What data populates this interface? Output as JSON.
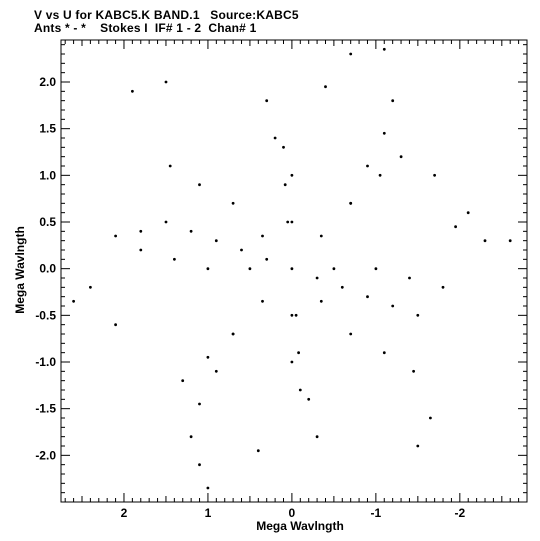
{
  "header": {
    "line1": "V vs U for KABC5.K BAND.1   Source:KABC5",
    "line2": "Ants * - *    Stokes I  IF# 1 - 2  Chan# 1"
  },
  "chart_data": {
    "type": "scatter",
    "title": "V vs U for KABC5.K BAND.1   Source:KABC5",
    "subtitle": "Ants * - *    Stokes I  IF# 1 - 2  Chan# 1",
    "xlabel": "Mega Wavlngth",
    "ylabel": "Mega Wavlngth",
    "xlim": [
      2.75,
      -2.8
    ],
    "ylim": [
      -2.5,
      2.45
    ],
    "x_reversed": true,
    "grid": false,
    "legend": "none",
    "x_ticks": [
      2,
      1,
      0,
      -1,
      -2
    ],
    "x_tick_labels": [
      "2",
      "1",
      "0",
      "-1",
      "-2"
    ],
    "y_ticks": [
      2.0,
      1.5,
      1.0,
      0.5,
      0.0,
      -0.5,
      -1.0,
      -1.5,
      -2.0
    ],
    "y_tick_labels": [
      "2.0",
      "1.5",
      "1.0",
      "0.5",
      "0.0",
      "-0.5",
      "-1.0",
      "-1.5",
      "-2.0"
    ],
    "marker_color": "#000000",
    "series": [
      {
        "points": [
          [
            0.0,
            0.0
          ],
          [
            0.3,
            0.1
          ],
          [
            0.6,
            0.2
          ],
          [
            0.9,
            0.3
          ],
          [
            1.2,
            0.4
          ],
          [
            1.5,
            0.5
          ],
          [
            1.8,
            0.4
          ],
          [
            2.1,
            0.35
          ],
          [
            -0.3,
            -0.1
          ],
          [
            -0.6,
            -0.2
          ],
          [
            -0.9,
            -0.3
          ],
          [
            -1.2,
            -0.4
          ],
          [
            -1.5,
            -0.5
          ],
          [
            -0.35,
            0.35
          ],
          [
            -0.7,
            0.7
          ],
          [
            -1.05,
            1.0
          ],
          [
            -1.3,
            1.2
          ],
          [
            -1.7,
            1.0
          ],
          [
            0.35,
            -0.35
          ],
          [
            0.7,
            -0.7
          ],
          [
            1.0,
            -0.95
          ],
          [
            1.3,
            -1.2
          ],
          [
            0.05,
            0.5
          ],
          [
            0.08,
            0.9
          ],
          [
            0.1,
            1.3
          ],
          [
            -0.05,
            -0.5
          ],
          [
            -0.08,
            -0.9
          ],
          [
            -0.1,
            -1.3
          ],
          [
            0.5,
            0.0
          ],
          [
            0.0,
            0.5
          ],
          [
            -0.5,
            0.0
          ],
          [
            0.0,
            -0.5
          ],
          [
            0.35,
            0.35
          ],
          [
            -0.35,
            -0.35
          ],
          [
            1.0,
            0.0
          ],
          [
            0.7,
            0.7
          ],
          [
            0.0,
            1.0
          ],
          [
            -0.7,
            0.7
          ],
          [
            -1.0,
            0.0
          ],
          [
            -0.7,
            -0.7
          ],
          [
            0.0,
            -1.0
          ],
          [
            0.7,
            -0.7
          ],
          [
            1.4,
            0.1
          ],
          [
            1.1,
            0.9
          ],
          [
            0.2,
            1.4
          ],
          [
            -0.9,
            1.1
          ],
          [
            -1.4,
            -0.1
          ],
          [
            -1.1,
            -0.9
          ],
          [
            -0.2,
            -1.4
          ],
          [
            0.9,
            -1.1
          ],
          [
            1.8,
            0.2
          ],
          [
            1.45,
            1.1
          ],
          [
            0.3,
            1.8
          ],
          [
            -1.1,
            1.45
          ],
          [
            -1.8,
            -0.2
          ],
          [
            -1.45,
            -1.1
          ],
          [
            -0.3,
            -1.8
          ],
          [
            1.1,
            -1.45
          ],
          [
            2.4,
            -0.2
          ],
          [
            2.6,
            -0.35
          ],
          [
            1.9,
            1.9
          ],
          [
            1.5,
            2.0
          ],
          [
            -0.7,
            2.3
          ],
          [
            -1.1,
            2.35
          ],
          [
            -2.3,
            0.3
          ],
          [
            -2.6,
            0.3
          ],
          [
            -2.1,
            0.6
          ],
          [
            1.0,
            -2.35
          ],
          [
            1.1,
            -2.1
          ],
          [
            -1.5,
            -1.9
          ],
          [
            -1.65,
            -1.6
          ],
          [
            2.1,
            -0.6
          ],
          [
            1.2,
            -1.8
          ],
          [
            -0.4,
            1.95
          ],
          [
            -1.95,
            0.45
          ],
          [
            0.4,
            -1.95
          ],
          [
            -1.2,
            1.8
          ]
        ]
      }
    ]
  }
}
